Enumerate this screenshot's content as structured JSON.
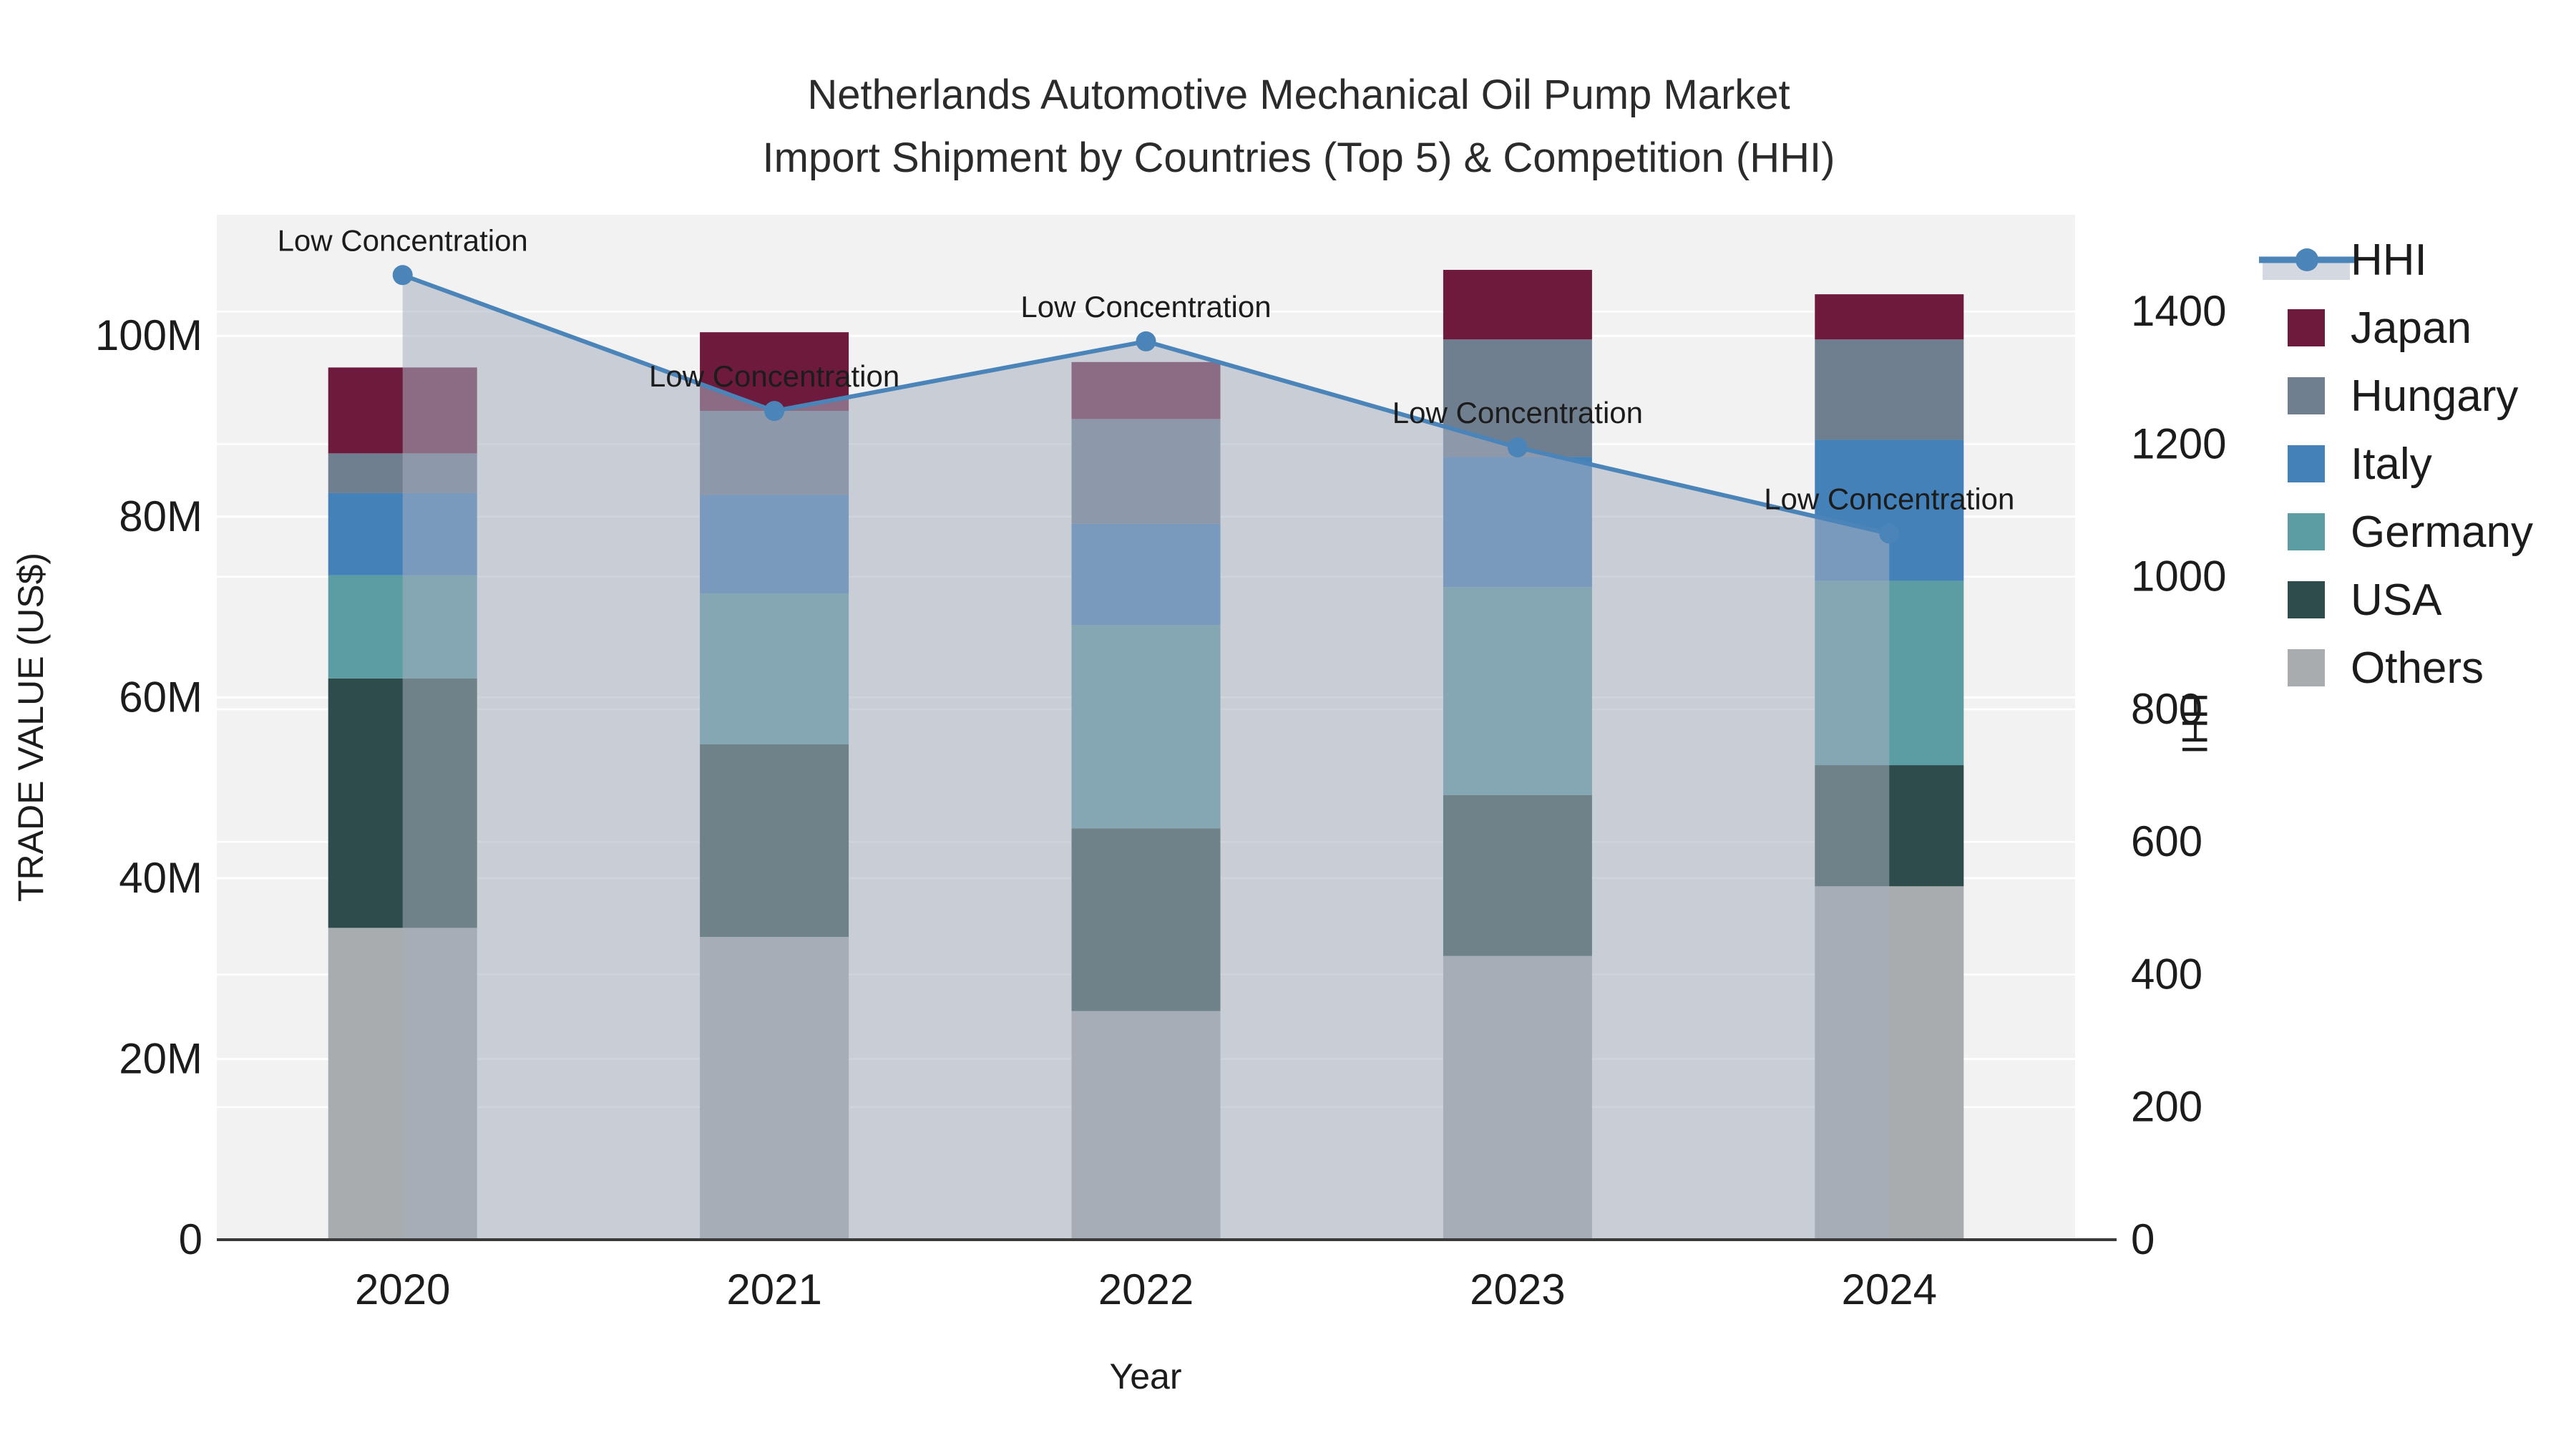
{
  "title": {
    "line1": "Netherlands Automotive Mechanical Oil Pump Market",
    "line2": "Import Shipment by Countries (Top 5) & Competition (HHI)"
  },
  "chart_data": {
    "type": "bar",
    "subtype": "stacked-bars-with-line",
    "categories": [
      "2020",
      "2021",
      "2022",
      "2023",
      "2024"
    ],
    "xlabel": "Year",
    "ylabel_left": "TRADE VALUE (US$)",
    "ylabel_right": "HHI",
    "y_left_ticks": [
      "0",
      "20M",
      "40M",
      "60M",
      "80M",
      "100M"
    ],
    "y_left_tick_values": [
      0,
      20,
      40,
      60,
      80,
      100
    ],
    "y_left_range": [
      0,
      113.4
    ],
    "y_right_ticks": [
      "0",
      "200",
      "400",
      "600",
      "800",
      "1000",
      "1200",
      "1400"
    ],
    "y_right_tick_values": [
      0,
      200,
      400,
      600,
      800,
      1000,
      1200,
      1400
    ],
    "y_right_range": [
      0,
      1546
    ],
    "grid": true,
    "legend_position": "right-outside",
    "series": [
      {
        "name": "Others",
        "unit": "M US$",
        "color": "#a9acae",
        "values": [
          34.5,
          33.5,
          25.3,
          31.4,
          39.1
        ]
      },
      {
        "name": "USA",
        "unit": "M US$",
        "color": "#2e4c4b",
        "values": [
          27.6,
          21.3,
          20.2,
          17.8,
          13.4
        ]
      },
      {
        "name": "Germany",
        "unit": "M US$",
        "color": "#5c9da4",
        "values": [
          11.4,
          16.7,
          22.5,
          23.0,
          20.4
        ]
      },
      {
        "name": "Italy",
        "unit": "M US$",
        "color": "#4381b8",
        "values": [
          9.1,
          10.9,
          11.2,
          14.4,
          15.6
        ]
      },
      {
        "name": "Hungary",
        "unit": "M US$",
        "color": "#6f7f90",
        "values": [
          4.4,
          9.3,
          11.6,
          13.0,
          11.1
        ]
      },
      {
        "name": "Japan",
        "unit": "M US$",
        "color": "#6d1a3c",
        "values": [
          9.5,
          8.7,
          6.3,
          7.7,
          5.0
        ]
      }
    ],
    "line_series": {
      "name": "HHI",
      "axis": "right",
      "color": "#4a84b8",
      "area_fill": "#a5aec0",
      "area_opacity": 0.55,
      "values": [
        1455,
        1250,
        1355,
        1195,
        1065
      ]
    },
    "annotations": [
      {
        "text": "Low Concentration",
        "category": "2020"
      },
      {
        "text": "Low Concentration",
        "category": "2021"
      },
      {
        "text": "Low Concentration",
        "category": "2022"
      },
      {
        "text": "Low Concentration",
        "category": "2023"
      },
      {
        "text": "Low Concentration",
        "category": "2024"
      }
    ],
    "legend": [
      "HHI",
      "Japan",
      "Hungary",
      "Italy",
      "Germany",
      "USA",
      "Others"
    ]
  },
  "theme": {
    "plot_bg": "#f2f2f2",
    "grid_color": "#ffffff",
    "axis_line_color": "#3a3a3a",
    "text_color": "#1c1c1c",
    "legend_area_swatch": "#d4d9e1"
  }
}
